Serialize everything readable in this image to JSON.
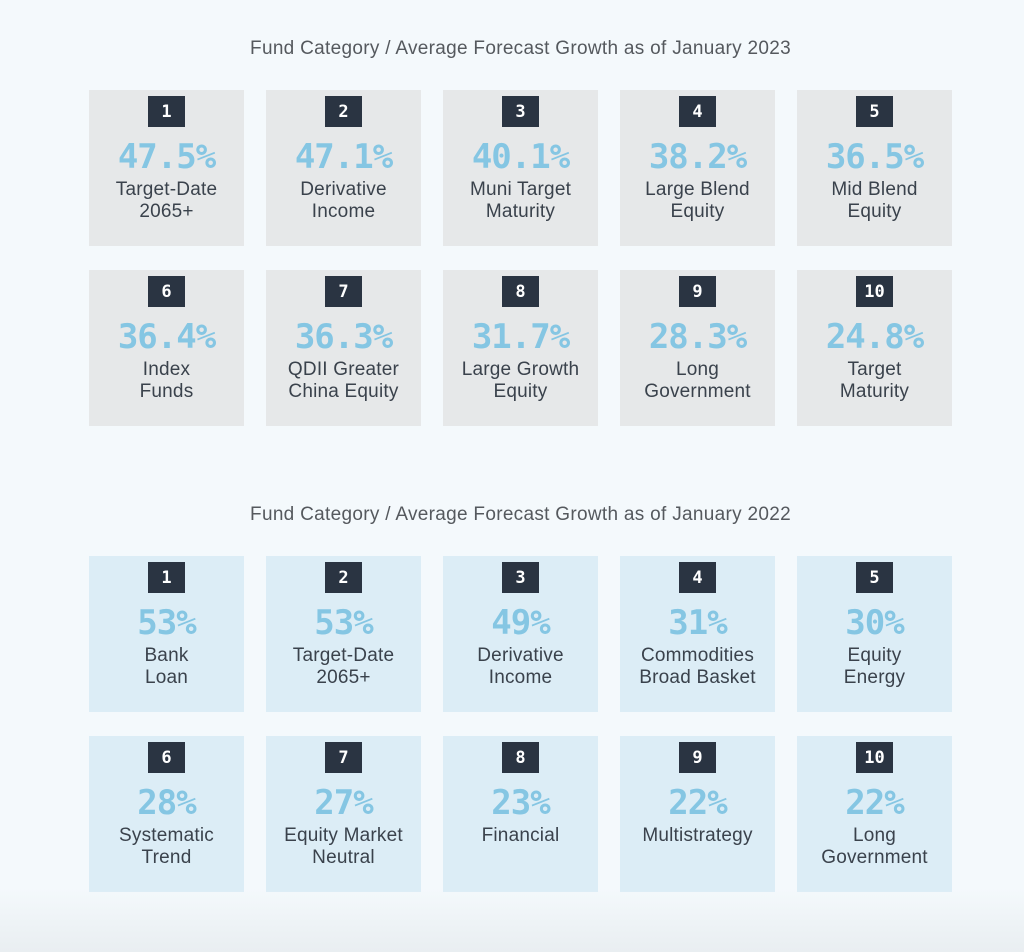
{
  "page": {
    "background": "#f4f9fc",
    "bottom_fade": "#e9eef1"
  },
  "colors": {
    "badge_bg": "#2a3442",
    "badge_text": "#ffffff",
    "value_accent": "#85c6e3",
    "label_text": "#3a424c",
    "title_text": "#55595e",
    "card_bg_2023": "#e6e8e9",
    "card_bg_2022": "#dcedf6"
  },
  "sections": [
    {
      "title": "Fund Category / Average Forecast Growth as of January 2023",
      "card_bg": "#e6e8e9",
      "cards": [
        {
          "rank": "1",
          "value": "47.5%",
          "label": "Target-Date\n2065+"
        },
        {
          "rank": "2",
          "value": "47.1%",
          "label": "Derivative\nIncome"
        },
        {
          "rank": "3",
          "value": "40.1%",
          "label": "Muni Target\nMaturity"
        },
        {
          "rank": "4",
          "value": "38.2%",
          "label": "Large Blend\nEquity"
        },
        {
          "rank": "5",
          "value": "36.5%",
          "label": "Mid Blend\nEquity"
        },
        {
          "rank": "6",
          "value": "36.4%",
          "label": "Index\nFunds"
        },
        {
          "rank": "7",
          "value": "36.3%",
          "label": "QDII Greater\nChina Equity"
        },
        {
          "rank": "8",
          "value": "31.7%",
          "label": "Large Growth\nEquity"
        },
        {
          "rank": "9",
          "value": "28.3%",
          "label": "Long\nGovernment"
        },
        {
          "rank": "10",
          "value": "24.8%",
          "label": "Target\nMaturity"
        }
      ]
    },
    {
      "title": "Fund Category / Average Forecast Growth as of January 2022",
      "card_bg": "#dcedf6",
      "cards": [
        {
          "rank": "1",
          "value": "53%",
          "label": "Bank\nLoan"
        },
        {
          "rank": "2",
          "value": "53%",
          "label": "Target-Date\n2065+"
        },
        {
          "rank": "3",
          "value": "49%",
          "label": "Derivative\nIncome"
        },
        {
          "rank": "4",
          "value": "31%",
          "label": "Commodities\nBroad Basket"
        },
        {
          "rank": "5",
          "value": "30%",
          "label": "Equity\nEnergy"
        },
        {
          "rank": "6",
          "value": "28%",
          "label": "Systematic\nTrend"
        },
        {
          "rank": "7",
          "value": "27%",
          "label": "Equity Market\nNeutral"
        },
        {
          "rank": "8",
          "value": "23%",
          "label": "Financial"
        },
        {
          "rank": "9",
          "value": "22%",
          "label": "Multistrategy"
        },
        {
          "rank": "10",
          "value": "22%",
          "label": "Long\nGovernment"
        }
      ]
    }
  ],
  "chart_data": [
    {
      "type": "table",
      "title": "Fund Category / Average Forecast Growth as of January 2023",
      "ranks": [
        1,
        2,
        3,
        4,
        5,
        6,
        7,
        8,
        9,
        10
      ],
      "categories": [
        "Target-Date 2065+",
        "Derivative Income",
        "Muni Target Maturity",
        "Large Blend Equity",
        "Mid Blend Equity",
        "Index Funds",
        "QDII Greater China Equity",
        "Large Growth Equity",
        "Long Government",
        "Target Maturity"
      ],
      "values": [
        47.5,
        47.1,
        40.1,
        38.2,
        36.5,
        36.4,
        36.3,
        31.7,
        28.3,
        24.8
      ],
      "unit": "%"
    },
    {
      "type": "table",
      "title": "Fund Category / Average Forecast Growth as of January 2022",
      "ranks": [
        1,
        2,
        3,
        4,
        5,
        6,
        7,
        8,
        9,
        10
      ],
      "categories": [
        "Bank Loan",
        "Target-Date 2065+",
        "Derivative Income",
        "Commodities Broad Basket",
        "Equity Energy",
        "Systematic Trend",
        "Equity Market Neutral",
        "Financial",
        "Multistrategy",
        "Long Government"
      ],
      "values": [
        53,
        53,
        49,
        31,
        30,
        28,
        27,
        23,
        22,
        22
      ],
      "unit": "%"
    }
  ]
}
